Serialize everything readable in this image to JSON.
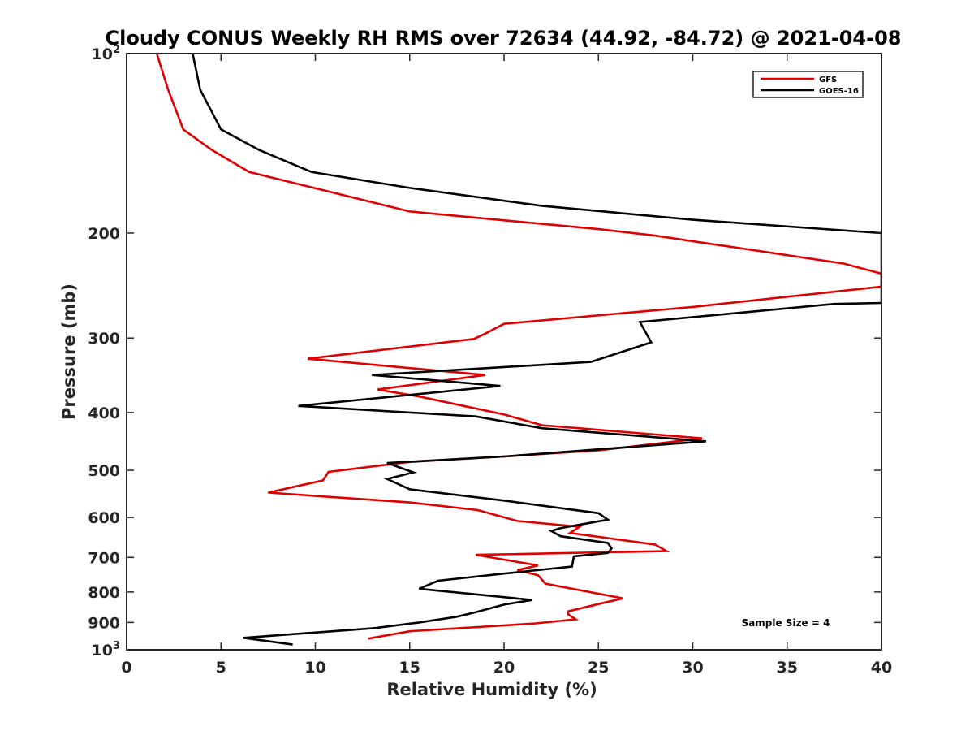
{
  "chart_data": {
    "type": "line",
    "title": "Cloudy CONUS Weekly RH RMS over 72634 (44.92, -84.72) @ 2021-04-08",
    "xlabel": "Relative Humidity (%)",
    "ylabel": "Pressure (mb)",
    "xlim": [
      0,
      40
    ],
    "ylim": [
      100,
      1000
    ],
    "y_scale": "log",
    "y_reversed": true,
    "x_ticks": [
      "0",
      "5",
      "10",
      "15",
      "20",
      "25",
      "30",
      "35",
      "40"
    ],
    "x_tick_values": [
      0,
      5,
      10,
      15,
      20,
      25,
      30,
      35,
      40
    ],
    "y_ticks": [
      {
        "value": 100,
        "base": "10",
        "exp": "2"
      },
      {
        "value": 200,
        "label": "200"
      },
      {
        "value": 300,
        "label": "300"
      },
      {
        "value": 400,
        "label": "400"
      },
      {
        "value": 500,
        "label": "500"
      },
      {
        "value": 600,
        "label": "600"
      },
      {
        "value": 700,
        "label": "700"
      },
      {
        "value": 800,
        "label": "800"
      },
      {
        "value": 900,
        "label": "900"
      },
      {
        "value": 1000,
        "base": "10",
        "exp": "3"
      }
    ],
    "grid": false,
    "legend_position": "top-right",
    "annotation": "Sample Size = 4",
    "series": [
      {
        "name": "GFS",
        "color": "#e00000",
        "points": [
          [
            1.6,
            100
          ],
          [
            2.2,
            115
          ],
          [
            3.0,
            134
          ],
          [
            4.5,
            145
          ],
          [
            6.5,
            158
          ],
          [
            15.0,
            184
          ],
          [
            25.0,
            197
          ],
          [
            28.0,
            202
          ],
          [
            38.0,
            225
          ],
          [
            40.0,
            234
          ],
          [
            40.0,
            246
          ],
          [
            30.0,
            266
          ],
          [
            20.0,
            284
          ],
          [
            19.0,
            295
          ],
          [
            18.4,
            301
          ],
          [
            9.6,
            325
          ],
          [
            19.0,
            346
          ],
          [
            13.3,
            366
          ],
          [
            15.5,
            376
          ],
          [
            20.0,
            403
          ],
          [
            22.0,
            420
          ],
          [
            30.5,
            442
          ],
          [
            25.0,
            463
          ],
          [
            20.0,
            474
          ],
          [
            15.0,
            484
          ],
          [
            10.7,
            503
          ],
          [
            10.4,
            520
          ],
          [
            7.5,
            545
          ],
          [
            15.0,
            566
          ],
          [
            18.6,
            583
          ],
          [
            20.7,
            608
          ],
          [
            24.0,
            622
          ],
          [
            23.5,
            637
          ],
          [
            28.0,
            666
          ],
          [
            28.6,
            683
          ],
          [
            18.5,
            693
          ],
          [
            21.8,
            722
          ],
          [
            20.7,
            735
          ],
          [
            21.8,
            750
          ],
          [
            22.2,
            775
          ],
          [
            26.3,
            820
          ],
          [
            25.0,
            838
          ],
          [
            23.4,
            862
          ],
          [
            23.4,
            872
          ],
          [
            23.8,
            889
          ],
          [
            21.7,
            903
          ],
          [
            15.0,
            931
          ],
          [
            12.8,
            958
          ]
        ]
      },
      {
        "name": "GOES-16",
        "color": "#000000",
        "points": [
          [
            3.5,
            100
          ],
          [
            3.9,
            115
          ],
          [
            5.0,
            134
          ],
          [
            7.0,
            145
          ],
          [
            9.8,
            158
          ],
          [
            15.0,
            168
          ],
          [
            22.0,
            180
          ],
          [
            30.0,
            190
          ],
          [
            40.0,
            200
          ],
          [
            40.0,
            262
          ],
          [
            37.5,
            263
          ],
          [
            27.2,
            282
          ],
          [
            27.8,
            305
          ],
          [
            24.6,
            329
          ],
          [
            13.0,
            346
          ],
          [
            19.8,
            361
          ],
          [
            9.1,
            390
          ],
          [
            18.5,
            406
          ],
          [
            22.0,
            425
          ],
          [
            30.7,
            447
          ],
          [
            20.0,
            474
          ],
          [
            13.8,
            486
          ],
          [
            15.2,
            504
          ],
          [
            13.8,
            517
          ],
          [
            15.0,
            538
          ],
          [
            20.0,
            562
          ],
          [
            25.0,
            590
          ],
          [
            25.5,
            605
          ],
          [
            23.0,
            625
          ],
          [
            22.5,
            632
          ],
          [
            23.0,
            645
          ],
          [
            25.5,
            662
          ],
          [
            25.7,
            676
          ],
          [
            25.5,
            688
          ],
          [
            23.7,
            697
          ],
          [
            23.6,
            725
          ],
          [
            20.0,
            745
          ],
          [
            16.5,
            766
          ],
          [
            15.5,
            790
          ],
          [
            21.5,
            825
          ],
          [
            20.0,
            840
          ],
          [
            18.5,
            865
          ],
          [
            17.5,
            880
          ],
          [
            15.5,
            900
          ],
          [
            13.1,
            920
          ],
          [
            6.2,
            955
          ],
          [
            8.8,
            980
          ]
        ]
      }
    ]
  }
}
